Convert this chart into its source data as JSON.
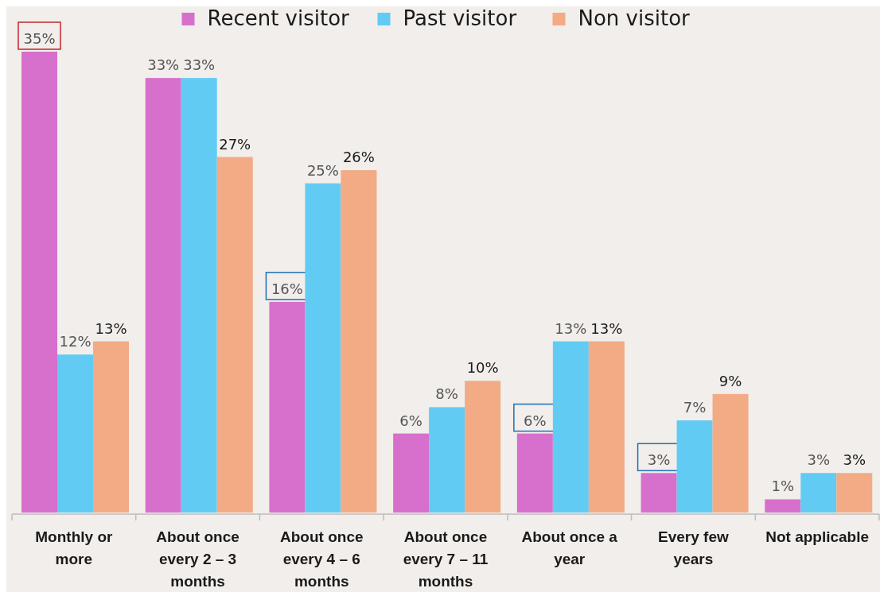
{
  "chart_data": {
    "type": "bar",
    "categories": [
      "Monthly or more",
      "About once every 2 – 3 months",
      "About once every 4 – 6 months",
      "About once every 7 – 11 months",
      "About once a year",
      "Every few years",
      "Not applicable"
    ],
    "series": [
      {
        "name": "Recent visitor",
        "color": "#d670cc",
        "values": [
          35,
          33,
          16,
          6,
          6,
          3,
          1
        ],
        "value_labels": [
          "35%",
          "33%",
          "16%",
          "6%",
          "6%",
          "3%",
          "1%"
        ]
      },
      {
        "name": "Past visitor",
        "color": "#62cbf3",
        "values": [
          12,
          33,
          25,
          8,
          13,
          7,
          3
        ],
        "value_labels": [
          "12%",
          "33%",
          "25%",
          "8%",
          "13%",
          "7%",
          "3%"
        ]
      },
      {
        "name": "Non visitor",
        "color": "#f2ab85",
        "values": [
          13,
          27,
          26,
          10,
          13,
          9,
          3
        ],
        "value_labels": [
          "13%",
          "27%",
          "26%",
          "10%",
          "13%",
          "9%",
          "3%"
        ]
      }
    ],
    "legend": "top"
  }
}
